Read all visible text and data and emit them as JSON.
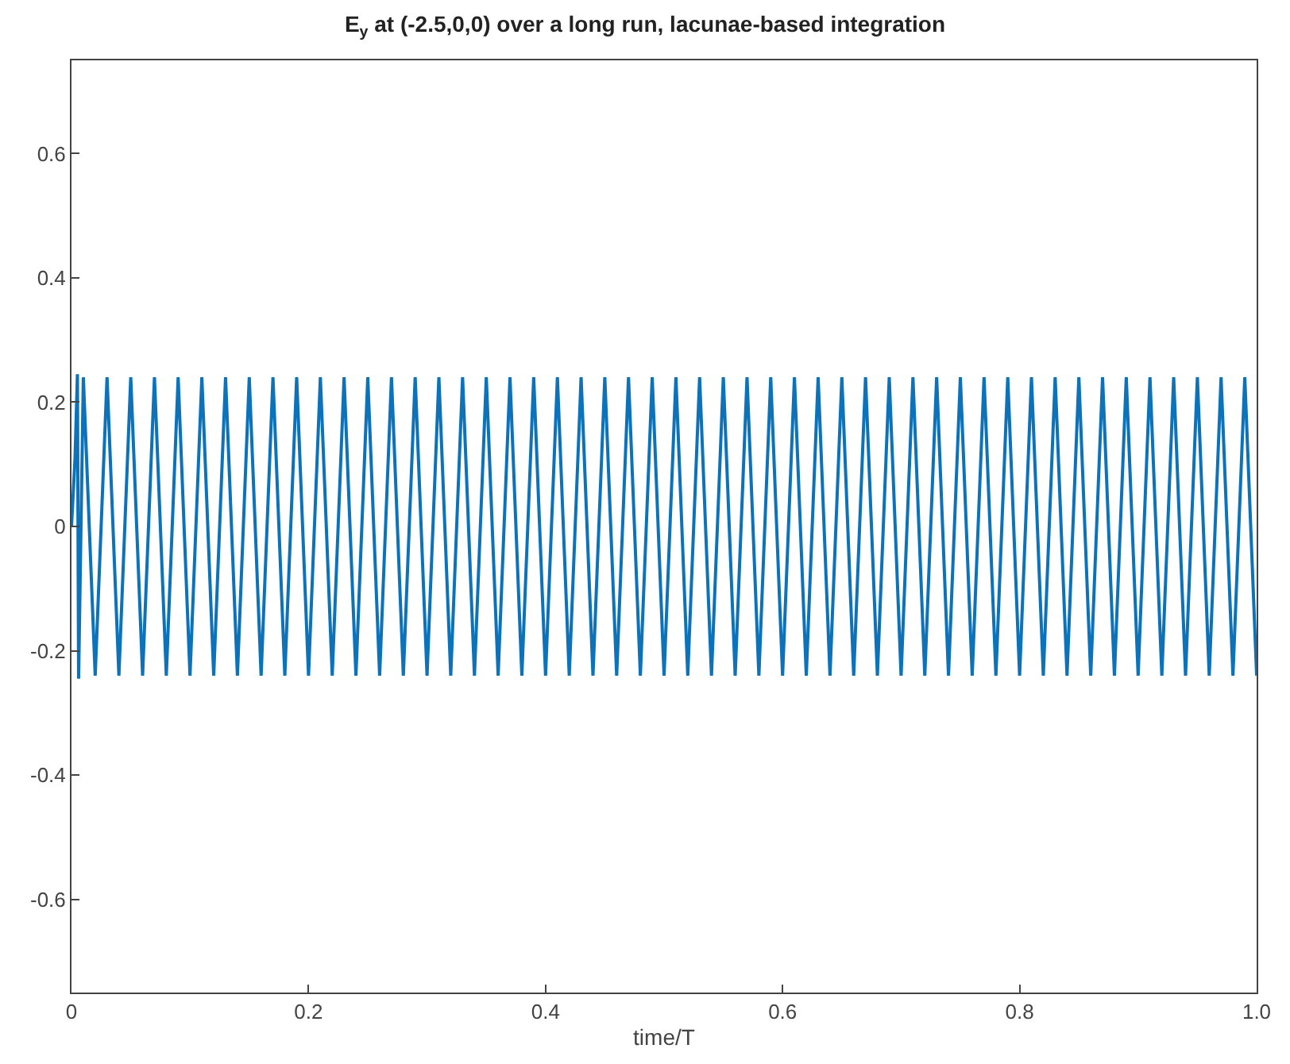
{
  "chart_data": {
    "type": "line",
    "title": "E$_{y}$ at (-2.5,0,0) over a long run, lacunae-based integration",
    "xlabel": "time/T",
    "x": [
      0,
      0.003,
      0.005,
      0.006,
      0.01,
      0.02,
      0.03,
      0.04,
      0.05,
      0.06,
      0.07,
      0.08,
      0.09,
      0.1,
      0.11,
      0.12,
      0.13,
      0.14,
      0.15,
      0.16,
      0.17,
      0.18,
      0.19,
      0.2,
      0.21,
      0.22,
      0.23,
      0.24,
      0.25,
      0.26,
      0.27,
      0.28,
      0.29,
      0.3,
      0.31,
      0.32,
      0.33,
      0.34,
      0.35,
      0.36,
      0.37,
      0.38,
      0.39,
      0.4,
      0.41,
      0.42,
      0.43,
      0.44,
      0.45,
      0.46,
      0.47,
      0.48,
      0.49,
      0.5,
      0.51,
      0.52,
      0.53,
      0.54,
      0.55,
      0.56,
      0.57,
      0.58,
      0.59,
      0.6,
      0.61,
      0.62,
      0.63,
      0.64,
      0.65,
      0.66,
      0.67,
      0.68,
      0.69,
      0.7,
      0.71,
      0.72,
      0.73,
      0.74,
      0.75,
      0.76,
      0.77,
      0.78,
      0.79,
      0.8,
      0.81,
      0.82,
      0.83,
      0.84,
      0.85,
      0.86,
      0.87,
      0.88,
      0.89,
      0.9,
      0.91,
      0.92,
      0.93,
      0.94,
      0.95,
      0.96,
      0.97,
      0.98,
      0.99,
      1.0
    ],
    "series": [
      {
        "color": "#0c72ba",
        "values": [
          0,
          0.11,
          0.245,
          -0.245,
          0.24,
          -0.24,
          0.24,
          -0.24,
          0.24,
          -0.24,
          0.24,
          -0.24,
          0.24,
          -0.24,
          0.24,
          -0.24,
          0.24,
          -0.24,
          0.24,
          -0.24,
          0.24,
          -0.24,
          0.24,
          -0.24,
          0.24,
          -0.24,
          0.24,
          -0.24,
          0.24,
          -0.24,
          0.24,
          -0.24,
          0.24,
          -0.24,
          0.24,
          -0.24,
          0.24,
          -0.24,
          0.24,
          -0.24,
          0.24,
          -0.24,
          0.24,
          -0.24,
          0.24,
          -0.24,
          0.24,
          -0.24,
          0.24,
          -0.24,
          0.24,
          -0.24,
          0.24,
          -0.24,
          0.24,
          -0.24,
          0.24,
          -0.24,
          0.24,
          -0.24,
          0.24,
          -0.24,
          0.24,
          -0.24,
          0.24,
          -0.24,
          0.24,
          -0.24,
          0.24,
          -0.24,
          0.24,
          -0.24,
          0.24,
          -0.24,
          0.24,
          -0.24,
          0.24,
          -0.24,
          0.24,
          -0.24,
          0.24,
          -0.24,
          0.24,
          -0.24,
          0.24,
          -0.24,
          0.24,
          -0.24,
          0.24,
          -0.24,
          0.24,
          -0.24,
          0.24,
          -0.24,
          0.24,
          -0.24,
          0.24,
          -0.24,
          0.24,
          -0.24,
          0.24,
          -0.24,
          0.24,
          -0.24
        ]
      }
    ],
    "xlim": [
      0,
      1
    ],
    "xticks": [
      0,
      0.2,
      0.4,
      0.6,
      0.8,
      {
        "value": 1,
        "label": "1.0"
      }
    ],
    "ylim": [
      -0.75,
      0.75
    ],
    "yticks": [
      -0.6,
      -0.4,
      -0.2,
      0,
      0.2,
      0.4,
      0.6
    ],
    "marker": "none",
    "line_style": "solid"
  }
}
